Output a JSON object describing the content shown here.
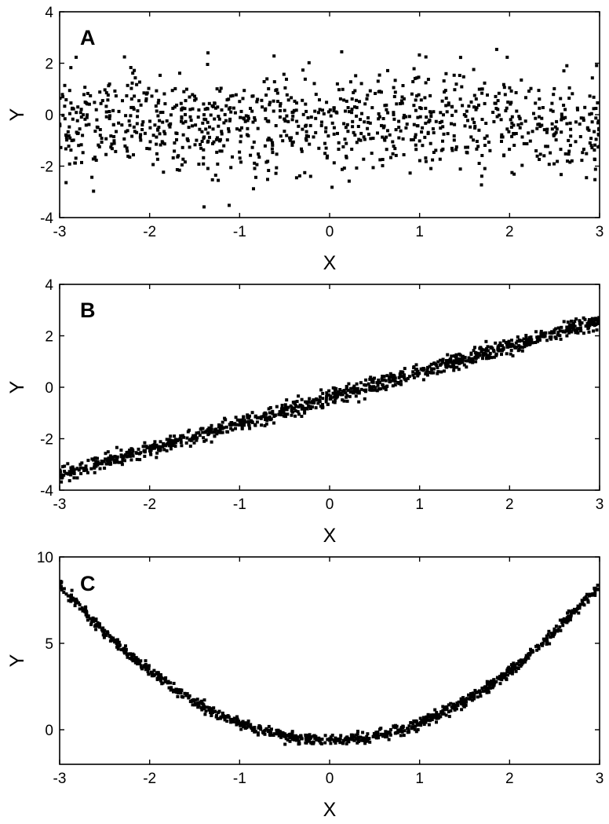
{
  "chart_data": [
    {
      "panel": "A",
      "type": "scatter",
      "xlabel": "X",
      "ylabel": "Y",
      "xlim": [
        -3,
        3
      ],
      "ylim": [
        -4,
        4
      ],
      "xticks": [
        -3,
        -2,
        -1,
        0,
        1,
        2,
        3
      ],
      "yticks": [
        -4,
        -2,
        0,
        2,
        4
      ],
      "relation": "noise",
      "n_points": 1000,
      "noise_sd": 1.0,
      "marker_color": "#000000"
    },
    {
      "panel": "B",
      "type": "scatter",
      "xlabel": "X",
      "ylabel": "Y",
      "xlim": [
        -3,
        3
      ],
      "ylim": [
        -4,
        4
      ],
      "xticks": [
        -3,
        -2,
        -1,
        0,
        1,
        2,
        3
      ],
      "yticks": [
        -4,
        -2,
        0,
        2,
        4
      ],
      "relation": "linear",
      "trend": {
        "slope": 1.0,
        "intercept": -0.4
      },
      "n_points": 1000,
      "noise_sd": 0.15,
      "marker_color": "#000000"
    },
    {
      "panel": "C",
      "type": "scatter",
      "xlabel": "X",
      "ylabel": "Y",
      "xlim": [
        -3,
        3
      ],
      "ylim": [
        -2,
        10
      ],
      "xticks": [
        -3,
        -2,
        -1,
        0,
        1,
        2,
        3
      ],
      "yticks": [
        0,
        5,
        10
      ],
      "relation": "quadratic",
      "trend": {
        "a": 1.0,
        "b": 0.0,
        "c": -0.6
      },
      "n_points": 1000,
      "noise_sd": 0.15,
      "marker_color": "#000000"
    }
  ]
}
